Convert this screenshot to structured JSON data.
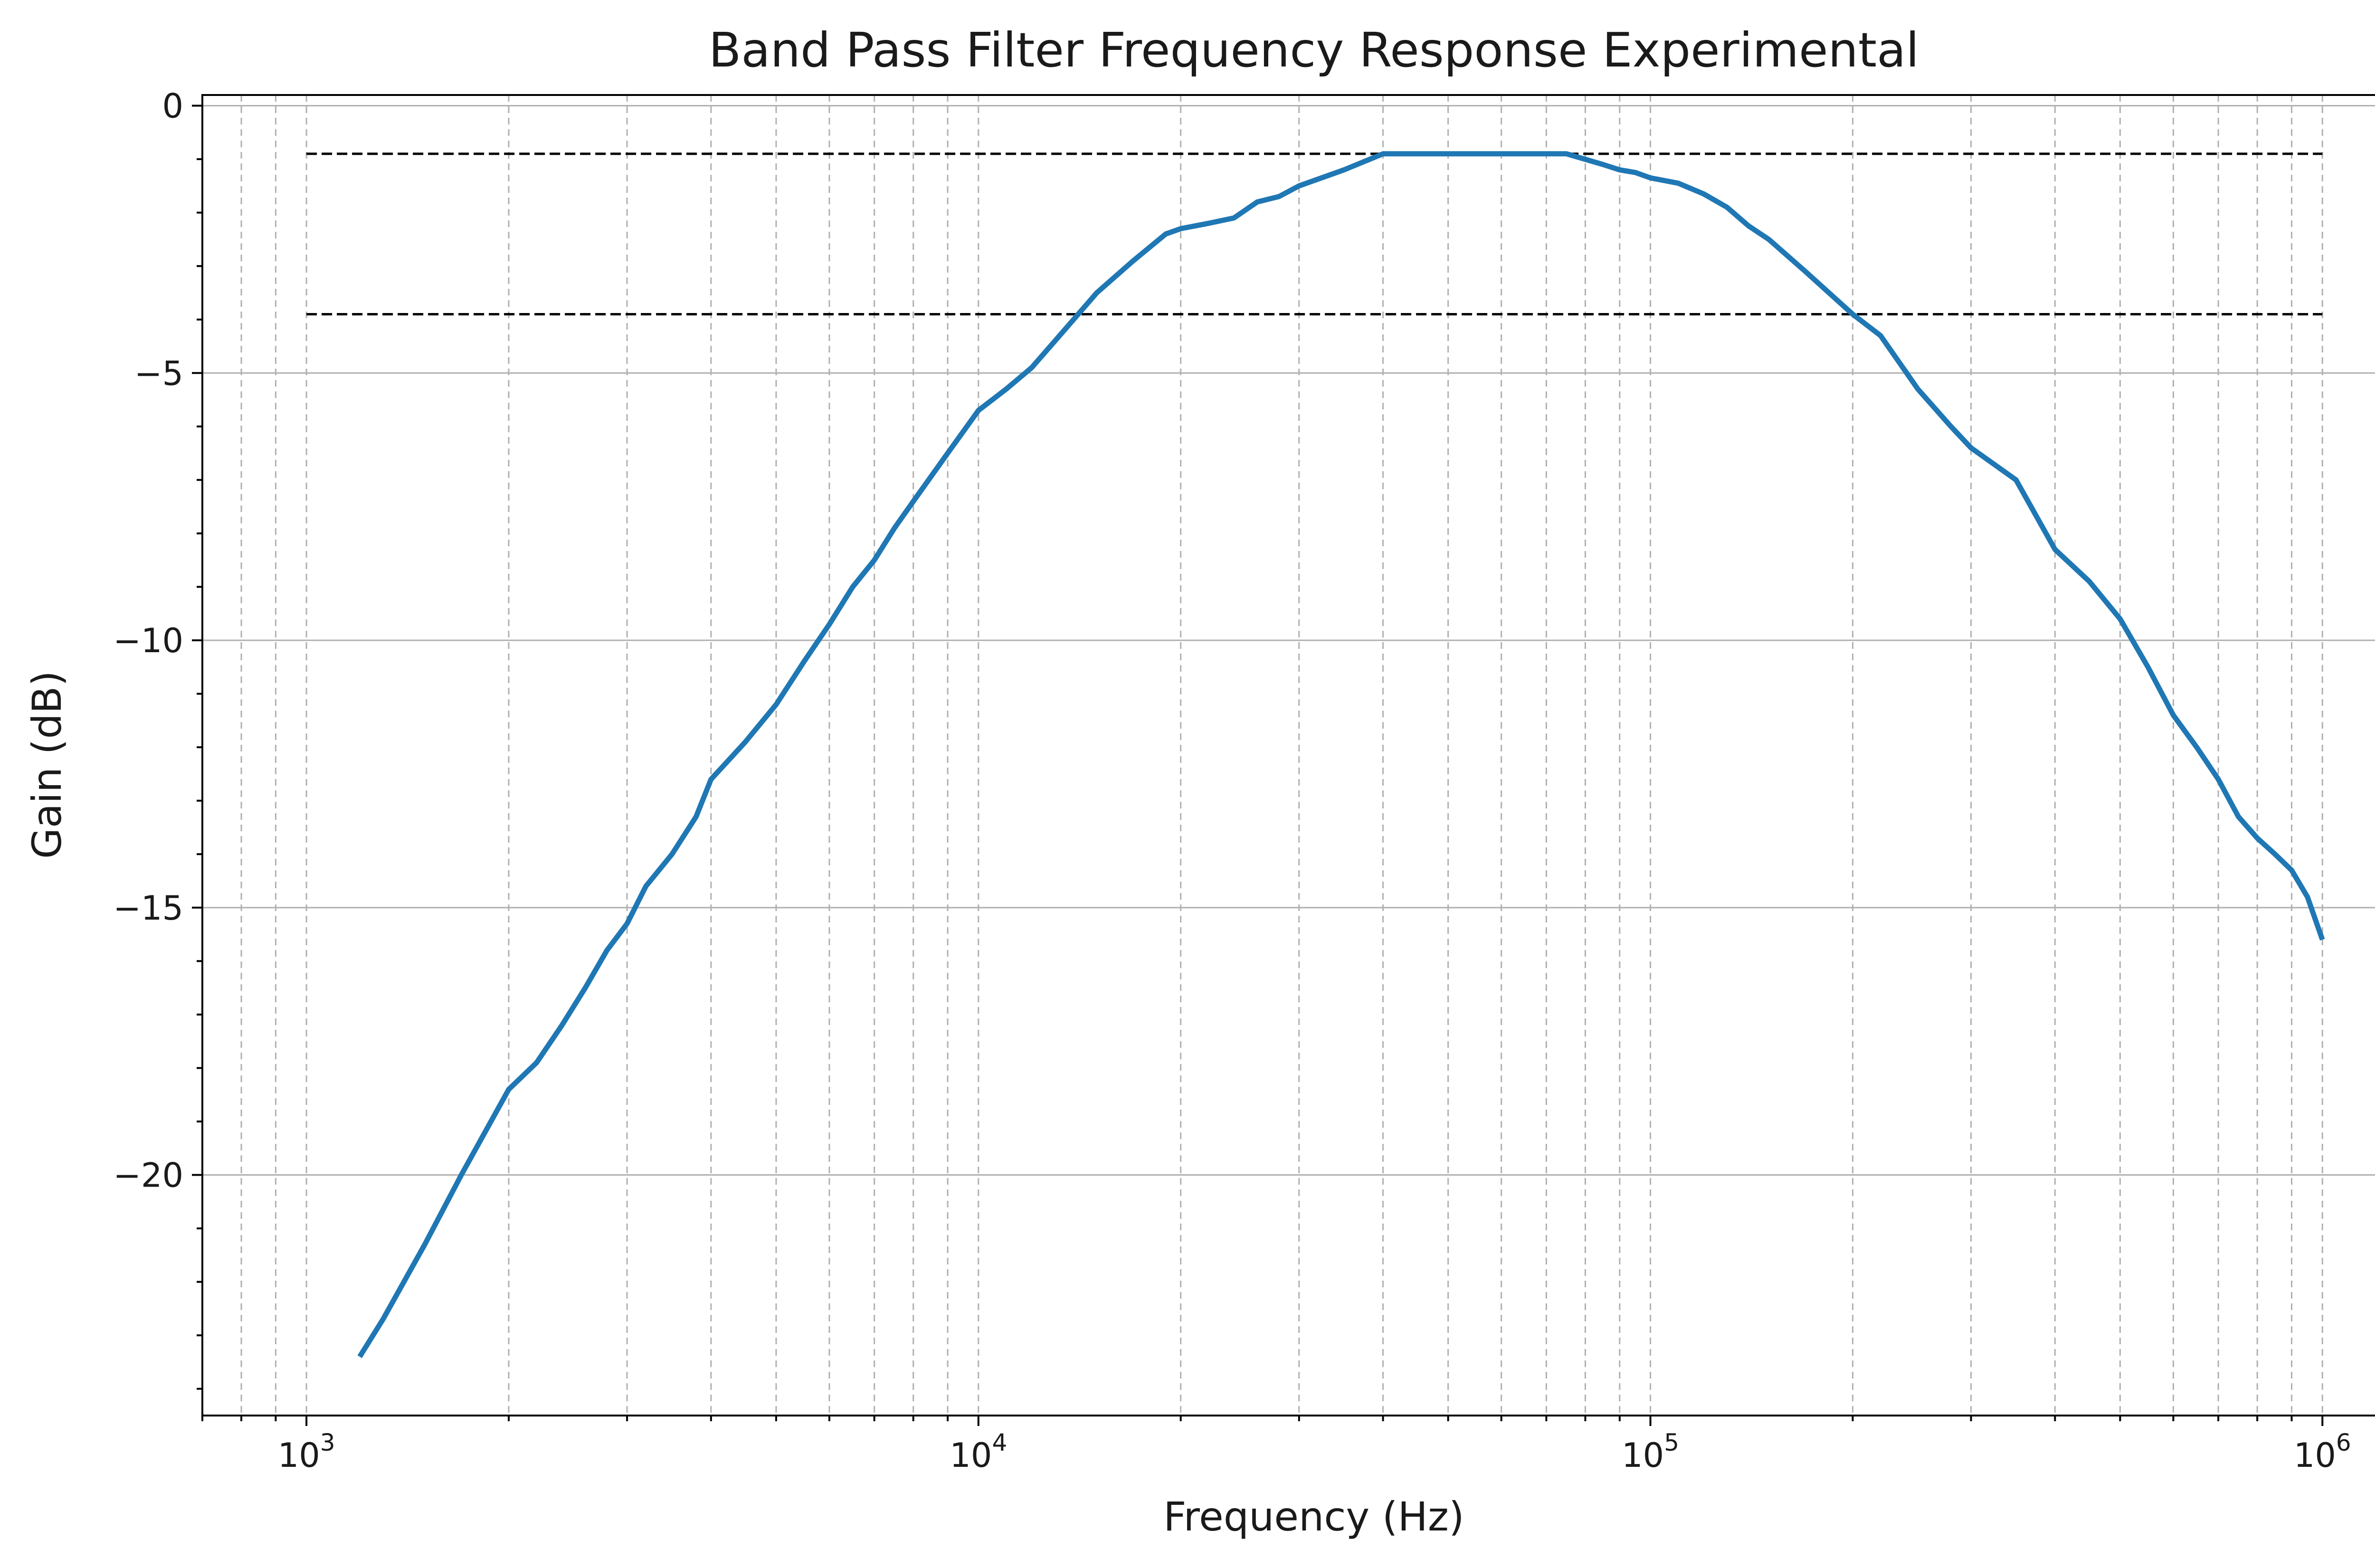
{
  "chart_data": {
    "type": "line",
    "title": "Band Pass Filter Frequency Response Experimental",
    "xlabel": "Frequency (Hz)",
    "ylabel": "Gain (dB)",
    "xscale": "log",
    "xlim": [
      700,
      1400000
    ],
    "ylim": [
      -24.5,
      0.2
    ],
    "grid": "major y solid, major and minor x dashed",
    "x_ticks": [
      {
        "value": 1000,
        "base": "10",
        "exp": "3"
      },
      {
        "value": 10000,
        "base": "10",
        "exp": "4"
      },
      {
        "value": 100000,
        "base": "10",
        "exp": "5"
      },
      {
        "value": 1000000,
        "base": "10",
        "exp": "6"
      }
    ],
    "y_ticks": [
      {
        "value": 0,
        "label": "0"
      },
      {
        "value": -5,
        "label": "−5"
      },
      {
        "value": -10,
        "label": "−10"
      },
      {
        "value": -15,
        "label": "−15"
      },
      {
        "value": -20,
        "label": "−20"
      }
    ],
    "reference_lines": [
      {
        "y": -0.9,
        "x_start": 1000,
        "x_end": 1000000,
        "style": "dashed",
        "color": "#000000"
      },
      {
        "y": -3.9,
        "x_start": 1000,
        "x_end": 1000000,
        "style": "dashed",
        "color": "#000000"
      }
    ],
    "series": [
      {
        "color": "#1f77b4",
        "x": [
          1200,
          1300,
          1500,
          1700,
          2000,
          2200,
          2400,
          2600,
          2800,
          3000,
          3200,
          3500,
          3800,
          4000,
          4500,
          5000,
          5500,
          6000,
          6500,
          7000,
          7500,
          8000,
          9000,
          10000,
          11000,
          12000,
          13000,
          15000,
          17000,
          19000,
          20000,
          22000,
          24000,
          26000,
          28000,
          30000,
          35000,
          40000,
          50000,
          60000,
          75000,
          85000,
          90000,
          95000,
          100000,
          110000,
          120000,
          130000,
          140000,
          150000,
          170000,
          200000,
          220000,
          250000,
          280000,
          300000,
          350000,
          400000,
          450000,
          500000,
          550000,
          600000,
          650000,
          700000,
          750000,
          800000,
          850000,
          900000,
          950000,
          1000000
        ],
        "y": [
          -23.4,
          -22.7,
          -21.3,
          -20.0,
          -18.4,
          -17.9,
          -17.2,
          -16.5,
          -15.8,
          -15.3,
          -14.6,
          -14.0,
          -13.3,
          -12.6,
          -11.9,
          -11.2,
          -10.4,
          -9.7,
          -9.0,
          -8.5,
          -7.9,
          -7.4,
          -6.5,
          -5.7,
          -5.3,
          -4.9,
          -4.4,
          -3.5,
          -2.9,
          -2.4,
          -2.3,
          -2.2,
          -2.1,
          -1.8,
          -1.7,
          -1.5,
          -1.2,
          -0.9,
          -0.9,
          -0.9,
          -0.9,
          -1.1,
          -1.2,
          -1.25,
          -1.35,
          -1.45,
          -1.65,
          -1.9,
          -2.25,
          -2.5,
          -3.1,
          -3.9,
          -4.3,
          -5.3,
          -6.0,
          -6.4,
          -7.0,
          -8.3,
          -8.9,
          -9.6,
          -10.5,
          -11.4,
          -12.0,
          -12.6,
          -13.3,
          -13.7,
          -14.0,
          -14.3,
          -14.8,
          -15.6
        ]
      }
    ]
  }
}
